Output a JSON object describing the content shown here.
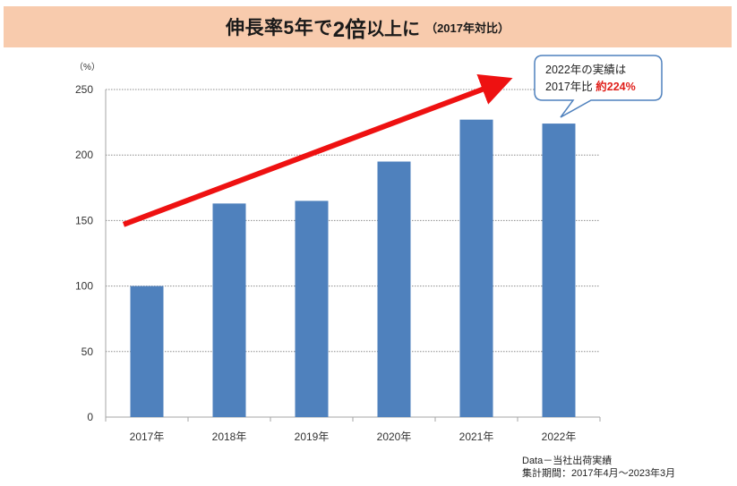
{
  "title": {
    "part1": "伸長率5年で",
    "part2": "2倍",
    "part3": "以上に",
    "part4": "（2017年対比）"
  },
  "colors": {
    "bar": "#4f81bd",
    "arrow": "#ee1111",
    "banner": "#f8cbad",
    "highlight": "#e0201b",
    "callout_border": "#4f81bd"
  },
  "callout": {
    "line1": "2022年の実績は",
    "line2_prefix": "2017年比 ",
    "line2_highlight": "約224%"
  },
  "footnote": {
    "line1": "Data－当社出荷実績",
    "line2": "集計期間：2017年4月～2023年3月"
  },
  "chart_data": {
    "type": "bar",
    "title": "伸長率5年で2倍以上に（2017年対比）",
    "ylabel": "（%）",
    "xlabel": "",
    "categories": [
      "2017年",
      "2018年",
      "2019年",
      "2020年",
      "2021年",
      "2022年"
    ],
    "values": [
      100,
      163,
      165,
      195,
      227,
      224
    ],
    "ylim": [
      0,
      250
    ],
    "yticks": [
      0,
      50,
      100,
      150,
      200,
      250
    ],
    "grid": true,
    "trend_arrow": {
      "from": [
        "2017年",
        147
      ],
      "to": [
        "2022年",
        253
      ]
    }
  }
}
